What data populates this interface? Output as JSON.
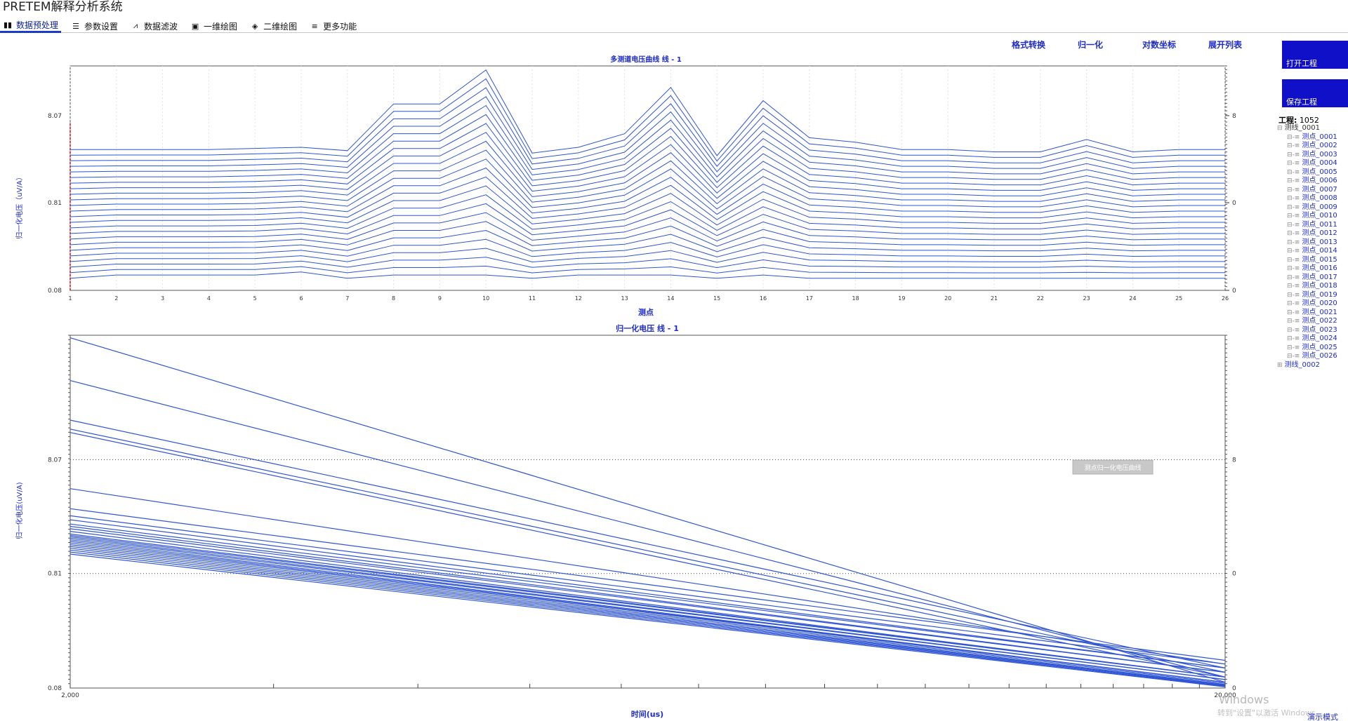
{
  "app_title": "PRETEM解释分析系统",
  "tabs": [
    {
      "label": "数据预处理",
      "icon": "bar-chart-icon"
    },
    {
      "label": "参数设置",
      "icon": "sliders-icon"
    },
    {
      "label": "数据滤波",
      "icon": "line-chart-icon"
    },
    {
      "label": "一维绘图",
      "icon": "image-icon"
    },
    {
      "label": "二维绘图",
      "icon": "cube-icon"
    },
    {
      "label": "更多功能",
      "icon": "menu-icon"
    }
  ],
  "toolbar": {
    "format_convert": "格式转换",
    "normalize": "归一化",
    "log_axis": "对数坐标",
    "expand_list": "展开列表"
  },
  "sidebar": {
    "open_project": "打开工程",
    "save_project": "保存工程",
    "project_label": "工程:",
    "project_name": "1052",
    "line_1": "测线_0001",
    "line_2": "测线_0002",
    "points": [
      "测点_0001",
      "测点_0002",
      "测点_0003",
      "测点_0004",
      "测点_0005",
      "测点_0006",
      "测点_0007",
      "测点_0008",
      "测点_0009",
      "测点_0010",
      "测点_0011",
      "测点_0012",
      "测点_0013",
      "测点_0014",
      "测点_0015",
      "测点_0016",
      "测点_0017",
      "测点_0018",
      "测点_0019",
      "测点_0020",
      "测点_0021",
      "测点_0022",
      "测点_0023",
      "测点_0024",
      "测点_0025",
      "测点_0026"
    ]
  },
  "chart1": {
    "title": "多测道电压曲线 线 - 1",
    "xlabel": "测点",
    "ylabel": "归一化电压（uV/A）",
    "y_ticks": [
      "8.07",
      "0.81",
      "0.08"
    ]
  },
  "chart2": {
    "title": "归一化电压 线 - 1",
    "xlabel": "时间(us)",
    "ylabel": "归一化电压(uV/A)",
    "y_ticks": [
      "8.07",
      "0.81",
      "0.08"
    ],
    "x_ticks": [
      "2,000",
      "20,000"
    ],
    "button": "测点归一化电压曲线"
  },
  "status": {
    "watermark": "Windows",
    "watermark_hint": "转到\"设置\"以激活 Windows。",
    "corner": "演示模式"
  },
  "colors": {
    "line": "#2f55d4",
    "accent": "#1010c8",
    "axis": "#c01818"
  },
  "chart_data": [
    {
      "type": "line",
      "title": "多测道电压曲线 线 - 1",
      "xlabel": "测点",
      "ylabel": "归一化电压（uV/A）",
      "x": [
        1,
        2,
        3,
        4,
        5,
        6,
        7,
        8,
        9,
        10,
        11,
        12,
        13,
        14,
        15,
        16,
        17,
        18,
        19,
        20,
        21,
        22,
        23,
        24,
        25,
        26
      ],
      "y_scale": "log",
      "ylim": [
        0.08,
        30
      ],
      "y_ticks": [
        8.07,
        0.81,
        0.08
      ],
      "series_count": 24,
      "top_series": [
        3.3,
        3.3,
        3.3,
        3.3,
        3.4,
        3.5,
        3.2,
        11.0,
        11.0,
        27.0,
        3.0,
        3.5,
        5.0,
        17.0,
        2.8,
        12.0,
        4.5,
        4.0,
        3.3,
        3.3,
        3.1,
        3.1,
        4.3,
        3.1,
        3.3,
        3.3
      ],
      "bottom_series": [
        0.11,
        0.12,
        0.12,
        0.12,
        0.12,
        0.13,
        0.11,
        0.12,
        0.12,
        0.12,
        0.11,
        0.12,
        0.12,
        0.12,
        0.11,
        0.12,
        0.11,
        0.11,
        0.11,
        0.11,
        0.11,
        0.11,
        0.11,
        0.11,
        0.11,
        0.11
      ],
      "grid": true
    },
    {
      "type": "line",
      "title": "归一化电压 线 - 1",
      "xlabel": "时间(us)",
      "ylabel": "归一化电压(uV/A)",
      "x_scale": "log",
      "y_scale": "log",
      "xlim": [
        2000,
        20000
      ],
      "ylim": [
        0.08,
        100
      ],
      "y_ticks": [
        8.07,
        0.81,
        0.08
      ],
      "x_ticks": [
        2000,
        20000
      ],
      "series_count": 26,
      "series_start_values": [
        95,
        40,
        18,
        15,
        14,
        4.5,
        3.0,
        2.6,
        2.4,
        2.2,
        2.1,
        2.0,
        1.9,
        1.8,
        1.75,
        1.7,
        1.65,
        1.6,
        1.55,
        1.5,
        1.45,
        1.4,
        1.35,
        1.3,
        1.25,
        1.2
      ],
      "series_end_values": [
        0.09,
        0.1,
        0.12,
        0.11,
        0.1,
        0.13,
        0.14,
        0.13,
        0.12,
        0.12,
        0.11,
        0.11,
        0.1,
        0.1,
        0.1,
        0.095,
        0.095,
        0.09,
        0.09,
        0.09,
        0.088,
        0.086,
        0.085,
        0.084,
        0.083,
        0.082
      ],
      "grid": true
    }
  ]
}
